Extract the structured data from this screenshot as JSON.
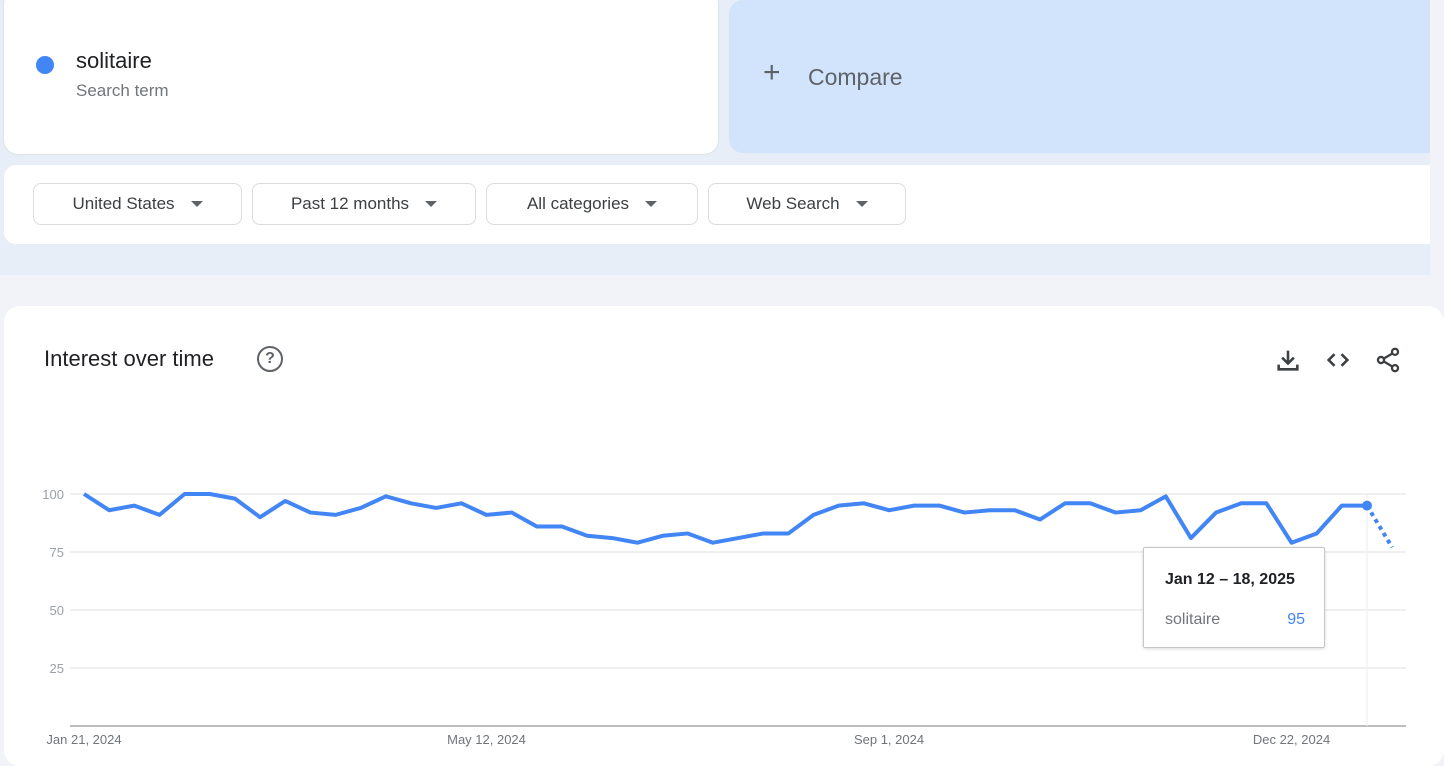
{
  "search": {
    "term": "solitaire",
    "subtitle": "Search term",
    "color": "#4285f4"
  },
  "compare": {
    "icon": "plus-icon",
    "label": "Compare"
  },
  "filters": [
    {
      "label": "United States"
    },
    {
      "label": "Past 12 months"
    },
    {
      "label": "All categories"
    },
    {
      "label": "Web Search"
    }
  ],
  "card": {
    "title": "Interest over time",
    "help_icon": "?",
    "actions": [
      "download-icon",
      "embed-code-icon",
      "share-icon"
    ]
  },
  "tooltip": {
    "date": "Jan 12 – 18, 2025",
    "term": "solitaire",
    "value": "95"
  },
  "chart_data": {
    "type": "line",
    "title": "",
    "xlabel": "",
    "ylabel": "",
    "ylim": [
      0,
      100
    ],
    "yticks": [
      "25",
      "50",
      "75",
      "100"
    ],
    "xtick_labels": [
      "Jan 21, 2024",
      "May 12, 2024",
      "Sep 1, 2024",
      "Dec 22, 2024"
    ],
    "xtick_dates": [
      "2024-01-21",
      "2024-05-12",
      "2024-09-01",
      "2024-12-22"
    ],
    "grid": true,
    "line_color": "#4285f4",
    "x": [
      "2024-01-21",
      "2024-01-28",
      "2024-02-04",
      "2024-02-11",
      "2024-02-18",
      "2024-02-25",
      "2024-03-03",
      "2024-03-10",
      "2024-03-17",
      "2024-03-24",
      "2024-03-31",
      "2024-04-07",
      "2024-04-14",
      "2024-04-21",
      "2024-04-28",
      "2024-05-05",
      "2024-05-12",
      "2024-05-19",
      "2024-05-26",
      "2024-06-02",
      "2024-06-09",
      "2024-06-16",
      "2024-06-23",
      "2024-06-30",
      "2024-07-07",
      "2024-07-14",
      "2024-07-21",
      "2024-07-28",
      "2024-08-04",
      "2024-08-11",
      "2024-08-18",
      "2024-08-25",
      "2024-09-01",
      "2024-09-08",
      "2024-09-15",
      "2024-09-22",
      "2024-09-29",
      "2024-10-06",
      "2024-10-13",
      "2024-10-20",
      "2024-10-27",
      "2024-11-03",
      "2024-11-10",
      "2024-11-17",
      "2024-11-24",
      "2024-12-01",
      "2024-12-08",
      "2024-12-15",
      "2024-12-22",
      "2024-12-29",
      "2025-01-05",
      "2025-01-12",
      "2025-01-19"
    ],
    "series": [
      {
        "name": "solitaire",
        "values": [
          100,
          93,
          95,
          91,
          100,
          100,
          98,
          90,
          97,
          92,
          91,
          94,
          99,
          96,
          94,
          96,
          91,
          92,
          86,
          86,
          82,
          81,
          79,
          82,
          83,
          79,
          81,
          83,
          83,
          91,
          95,
          96,
          93,
          95,
          95,
          92,
          93,
          93,
          89,
          96,
          96,
          92,
          93,
          99,
          81,
          92,
          96,
          96,
          79,
          83,
          95,
          95,
          77
        ],
        "partial_last": true
      }
    ],
    "highlighted": {
      "date": "2025-01-12",
      "value": 95
    }
  }
}
